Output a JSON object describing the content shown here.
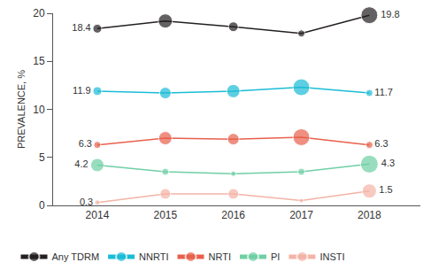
{
  "chart_data": {
    "type": "line",
    "y_label": "PREVALENCE, %",
    "x": [
      2014,
      2015,
      2016,
      2017,
      2018
    ],
    "xlim": [
      2013.35,
      2018.75
    ],
    "xticks": [
      2014,
      2015,
      2016,
      2017,
      2018
    ],
    "ylim": [
      0,
      20
    ],
    "yticks": [
      0,
      5,
      10,
      15,
      20
    ],
    "grid": false,
    "legend": "bottom",
    "marker": "circle",
    "series": [
      {
        "name": "Any TDRM",
        "color": "#231f20",
        "values": [
          18.4,
          19.2,
          18.6,
          17.9,
          19.8
        ],
        "value_labels": [
          "18.4",
          null,
          null,
          null,
          "19.8"
        ],
        "sizes": [
          10,
          16,
          11,
          8,
          19
        ]
      },
      {
        "name": "NNRTI",
        "color": "#1bbcd6",
        "values": [
          11.9,
          11.7,
          11.9,
          12.3,
          11.7
        ],
        "value_labels": [
          "11.9",
          null,
          null,
          null,
          "11.7"
        ],
        "sizes": [
          10,
          13,
          15,
          19,
          8
        ]
      },
      {
        "name": "NRTI",
        "color": "#e8604c",
        "values": [
          6.3,
          7.0,
          6.9,
          7.1,
          6.3
        ],
        "value_labels": [
          "6.3",
          null,
          null,
          null,
          "6.3"
        ],
        "sizes": [
          8,
          15,
          13,
          19,
          8
        ]
      },
      {
        "name": "PI",
        "color": "#6fcfa5",
        "values": [
          4.2,
          3.5,
          3.3,
          3.5,
          4.3
        ],
        "value_labels": [
          "4.2",
          null,
          null,
          null,
          "4.3"
        ],
        "sizes": [
          15,
          8,
          6,
          8,
          20
        ]
      },
      {
        "name": "INSTI",
        "color": "#f4b3a6",
        "values": [
          0.3,
          1.2,
          1.2,
          0.5,
          1.5
        ],
        "value_labels": [
          "0.3",
          null,
          null,
          null,
          "1.5"
        ],
        "sizes": [
          6,
          12,
          12,
          5,
          16
        ]
      }
    ]
  }
}
